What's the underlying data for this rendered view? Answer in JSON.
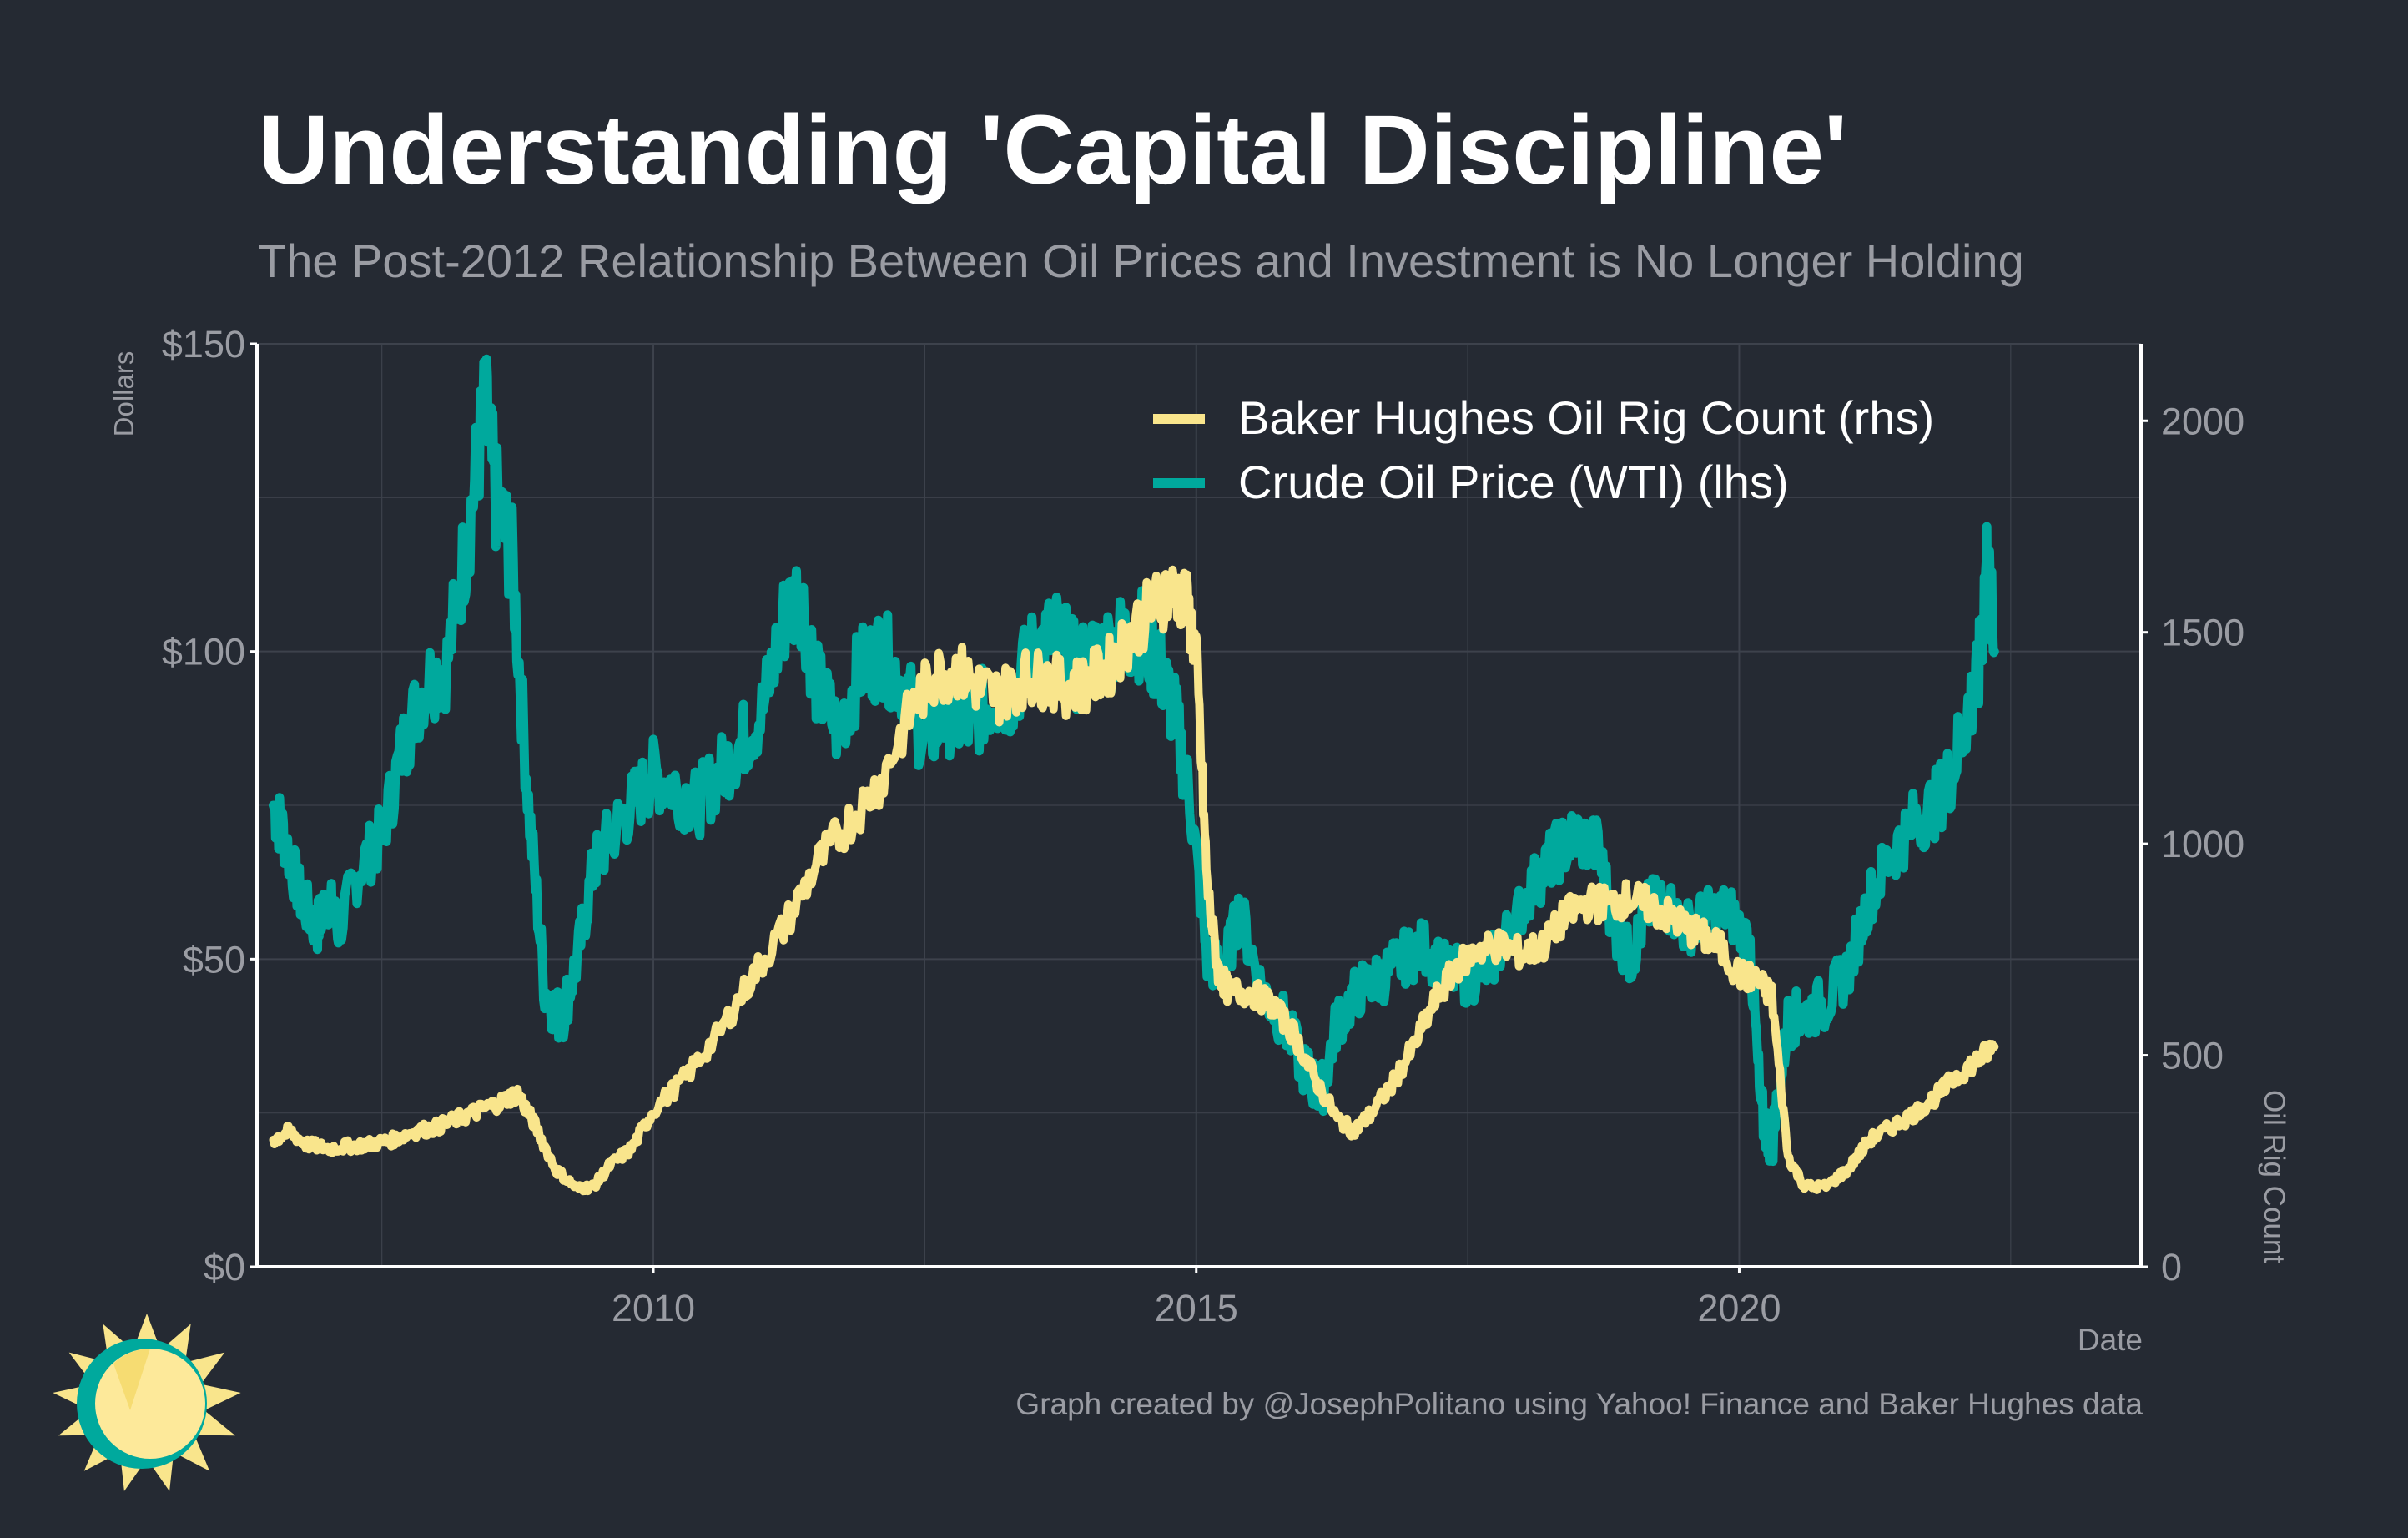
{
  "title": "Understanding 'Capital Discipline'",
  "subtitle": "The Post-2012 Relationship Between Oil Prices and Investment is No Longer Holding",
  "caption": "Graph created by @JosephPolitano using Yahoo! Finance and Baker Hughes data",
  "colors": {
    "background": "#252a33",
    "rig_count": "#f9e58c",
    "oil_price": "#00a99d",
    "grid": "#3d424c",
    "axis": "#ffffff",
    "text_muted": "#9a9ca3"
  },
  "chart_data": {
    "type": "line",
    "xlabel": "Date",
    "ylabel_left": "Dollars",
    "ylabel_right": "Oil Rig Count",
    "xlim": [
      2006.35,
      2023.7
    ],
    "ylim_left": [
      0,
      150
    ],
    "ylim_right": [
      0,
      2182
    ],
    "x_ticks": [
      2010,
      2015,
      2020
    ],
    "x_tick_labels": [
      "2010",
      "2015",
      "2020"
    ],
    "y_left_ticks": [
      0,
      50,
      100,
      150
    ],
    "y_left_tick_labels": [
      "$0",
      "$50",
      "$100",
      "$150"
    ],
    "y_right_ticks": [
      0,
      500,
      1000,
      1500,
      2000
    ],
    "y_right_tick_labels": [
      "0",
      "500",
      "1000",
      "1500",
      "2000"
    ],
    "grid": true,
    "legend_position": "top-right",
    "series": [
      {
        "name": "Baker Hughes Oil Rig Count (rhs)",
        "axis": "right",
        "color": "#f9e58c",
        "x": [
          2006.5,
          2006.65,
          2006.8,
          2007.0,
          2007.2,
          2007.4,
          2007.6,
          2007.8,
          2008.0,
          2008.2,
          2008.4,
          2008.6,
          2008.75,
          2008.9,
          2009.1,
          2009.3,
          2009.45,
          2009.6,
          2009.8,
          2010.0,
          2010.3,
          2010.6,
          2010.9,
          2011.2,
          2011.5,
          2011.8,
          2012.1,
          2012.4,
          2012.6,
          2012.8,
          2013.0,
          2013.2,
          2013.4,
          2013.6,
          2013.8,
          2014.0,
          2014.2,
          2014.4,
          2014.6,
          2014.75,
          2014.9,
          2015.0,
          2015.1,
          2015.2,
          2015.3,
          2015.5,
          2015.7,
          2015.9,
          2016.1,
          2016.3,
          2016.45,
          2016.6,
          2016.8,
          2017.0,
          2017.2,
          2017.4,
          2017.6,
          2017.8,
          2018.0,
          2018.2,
          2018.4,
          2018.6,
          2018.8,
          2019.0,
          2019.2,
          2019.4,
          2019.6,
          2019.8,
          2020.0,
          2020.15,
          2020.3,
          2020.45,
          2020.6,
          2020.8,
          2021.0,
          2021.2,
          2021.4,
          2021.6,
          2021.8,
          2022.0,
          2022.2,
          2022.35
        ],
        "values": [
          300,
          320,
          290,
          280,
          285,
          290,
          300,
          320,
          330,
          350,
          370,
          390,
          410,
          340,
          230,
          185,
          190,
          240,
          280,
          370,
          450,
          550,
          680,
          800,
          950,
          1050,
          1150,
          1330,
          1400,
          1410,
          1370,
          1350,
          1390,
          1390,
          1370,
          1380,
          1420,
          1500,
          1560,
          1600,
          1580,
          1450,
          900,
          700,
          650,
          650,
          620,
          550,
          440,
          350,
          320,
          360,
          430,
          520,
          630,
          710,
          750,
          760,
          740,
          760,
          830,
          860,
          860,
          870,
          850,
          820,
          790,
          760,
          690,
          680,
          640,
          260,
          190,
          190,
          230,
          300,
          330,
          360,
          400,
          450,
          490,
          520
        ]
      },
      {
        "name": "Crude Oil Price (WTI) (lhs)",
        "axis": "left",
        "color": "#00a99d",
        "x": [
          2006.5,
          2006.6,
          2006.75,
          2006.9,
          2007.0,
          2007.1,
          2007.3,
          2007.5,
          2007.7,
          2007.9,
          2008.1,
          2008.3,
          2008.45,
          2008.55,
          2008.7,
          2008.85,
          2009.0,
          2009.15,
          2009.3,
          2009.45,
          2009.6,
          2009.8,
          2010.0,
          2010.2,
          2010.4,
          2010.6,
          2010.8,
          2011.0,
          2011.2,
          2011.35,
          2011.5,
          2011.7,
          2011.9,
          2012.1,
          2012.3,
          2012.5,
          2012.7,
          2012.9,
          2013.1,
          2013.3,
          2013.5,
          2013.7,
          2013.9,
          2014.1,
          2014.3,
          2014.5,
          2014.65,
          2014.8,
          2014.95,
          2015.1,
          2015.25,
          2015.4,
          2015.6,
          2015.8,
          2016.0,
          2016.15,
          2016.3,
          2016.5,
          2016.7,
          2016.9,
          2017.1,
          2017.3,
          2017.5,
          2017.7,
          2017.9,
          2018.1,
          2018.3,
          2018.5,
          2018.7,
          2018.85,
          2019.0,
          2019.15,
          2019.3,
          2019.5,
          2019.7,
          2019.9,
          2020.1,
          2020.2,
          2020.3,
          2020.45,
          2020.6,
          2020.8,
          2021.0,
          2021.2,
          2021.4,
          2021.6,
          2021.8,
          2021.95,
          2022.1,
          2022.2,
          2022.28,
          2022.35
        ],
        "values": [
          75,
          70,
          60,
          55,
          60,
          55,
          65,
          70,
          85,
          95,
          98,
          120,
          140,
          125,
          115,
          75,
          45,
          40,
          50,
          65,
          70,
          75,
          80,
          78,
          75,
          80,
          85,
          90,
          105,
          110,
          95,
          87,
          97,
          100,
          95,
          85,
          90,
          88,
          92,
          93,
          100,
          103,
          97,
          100,
          102,
          103,
          98,
          90,
          75,
          50,
          48,
          58,
          45,
          40,
          32,
          28,
          40,
          45,
          47,
          50,
          52,
          48,
          47,
          49,
          55,
          62,
          67,
          70,
          68,
          55,
          50,
          58,
          60,
          55,
          57,
          58,
          52,
          25,
          20,
          40,
          41,
          43,
          48,
          60,
          67,
          72,
          75,
          80,
          90,
          95,
          115,
          100
        ]
      }
    ]
  }
}
